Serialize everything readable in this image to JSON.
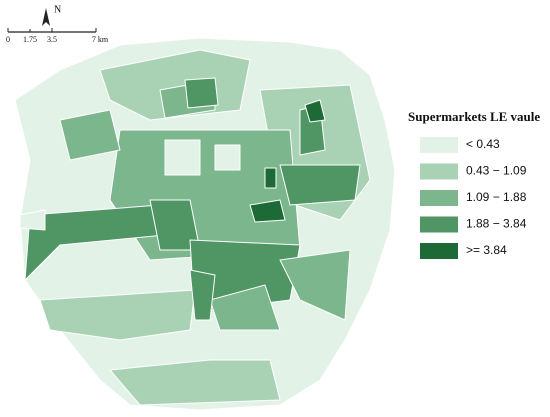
{
  "north_label": "N",
  "scale_bar": {
    "labels": [
      "0",
      "1.75",
      "3.5",
      "7 km"
    ]
  },
  "legend": {
    "title": "Supermarkets LE vaule",
    "items": [
      {
        "label": "< 0.43",
        "color": "#e2f2e7"
      },
      {
        "label": "0.43 − 1.09",
        "color": "#a9d2b4"
      },
      {
        "label": "1.09 − 1.88",
        "color": "#7bb68c"
      },
      {
        "label": "1.88 − 3.84",
        "color": "#4f9664"
      },
      {
        "label": ">= 3.84",
        "color": "#1e6a36"
      }
    ]
  }
}
